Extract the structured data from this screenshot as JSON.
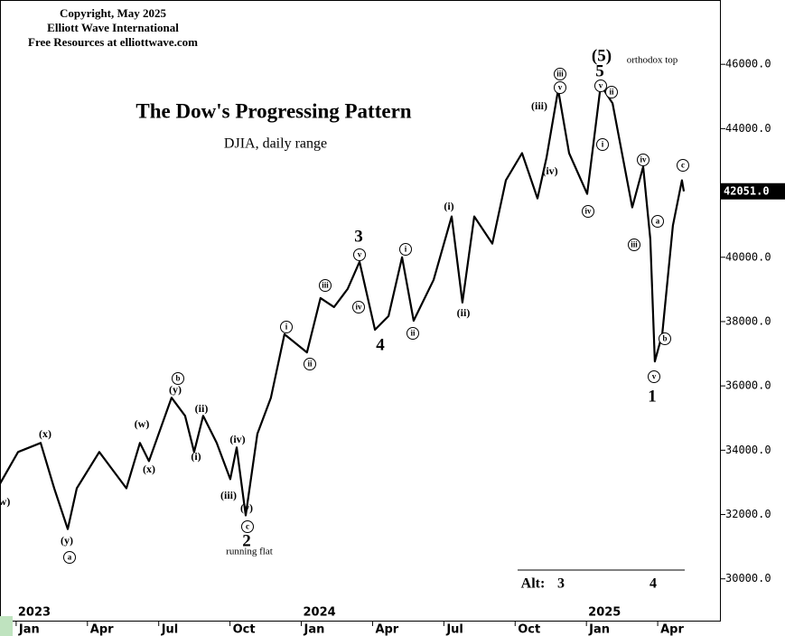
{
  "chart_data": {
    "type": "line",
    "header": [
      "Copyright, May 2025",
      "Elliott Wave International",
      "Free Resources at elliottwave.com"
    ],
    "title": "The Dow's Progressing Pattern",
    "subtitle": "DJIA, daily range",
    "series": [
      {
        "name": "DJIA",
        "color": "#000000",
        "x": [
          -0.68,
          0.08,
          1.03,
          1.6,
          2.17,
          2.55,
          3.5,
          4.64,
          5.21,
          5.59,
          6.54,
          7.11,
          7.49,
          7.87,
          8.44,
          9.01,
          9.28,
          9.66,
          10.15,
          10.72,
          11.29,
          12.24,
          12.81,
          13.38,
          13.95,
          14.45,
          15.1,
          15.67,
          16.24,
          16.73,
          17.57,
          18.33,
          18.78,
          19.28,
          20.04,
          20.61,
          21.29,
          21.94,
          22.32,
          22.81,
          23.27,
          24.03,
          24.6,
          25.1,
          25.93,
          26.39,
          26.69,
          26.88,
          27.19,
          27.64,
          28.02,
          28.1
        ],
        "values": [
          32960,
          33944,
          34225,
          32817,
          31549,
          32817,
          33944,
          32817,
          34225,
          33662,
          35634,
          35070,
          33944,
          35070,
          34225,
          33099,
          34085,
          31972,
          34507,
          35634,
          37606,
          37042,
          38732,
          38451,
          39014,
          39859,
          37746,
          38169,
          40000,
          38028,
          39296,
          41268,
          38592,
          41268,
          40423,
          42394,
          43239,
          41831,
          43099,
          45211,
          43239,
          41972,
          45352,
          44789,
          41549,
          42817,
          40563,
          36761,
          37606,
          40986,
          42394,
          42051
        ]
      }
    ],
    "last_price_label": "42051.0",
    "xlim": [
      -0.68,
      29.62
    ],
    "ylim": [
      28700,
      48000
    ],
    "xticks": [
      {
        "value": 0,
        "label": "Jan"
      },
      {
        "value": 3,
        "label": "Apr"
      },
      {
        "value": 6,
        "label": "Jul"
      },
      {
        "value": 9,
        "label": "Oct"
      },
      {
        "value": 12,
        "label": "Jan"
      },
      {
        "value": 15,
        "label": "Apr"
      },
      {
        "value": 18,
        "label": "Jul"
      },
      {
        "value": 21,
        "label": "Oct"
      },
      {
        "value": 24,
        "label": "Jan"
      },
      {
        "value": 27,
        "label": "Apr"
      }
    ],
    "years": [
      {
        "value": 0,
        "label": "2023"
      },
      {
        "value": 12,
        "label": "2024"
      },
      {
        "value": 24,
        "label": "2025"
      }
    ],
    "yticks": [
      {
        "value": 30000,
        "label": "30000.0"
      },
      {
        "value": 32000,
        "label": "32000.0"
      },
      {
        "value": 34000,
        "label": "34000.0"
      },
      {
        "value": 36000,
        "label": "36000.0"
      },
      {
        "value": 38000,
        "label": "38000.0"
      },
      {
        "value": 40000,
        "label": "40000.0"
      },
      {
        "value": 42000,
        "label": "42000.0"
      },
      {
        "value": 44000,
        "label": "44000.0"
      },
      {
        "value": 46000,
        "label": "46000.0"
      }
    ],
    "annotations": [
      "w)",
      "(x)",
      "(y)",
      "a",
      "(w)",
      "(x)",
      "b",
      "(y)",
      "(ii)",
      "(i)",
      "(iv)",
      "(iii)",
      "(v)",
      "c",
      "2",
      "running flat",
      "i",
      "ii",
      "iii",
      "iv",
      "3",
      "v",
      "4",
      "i",
      "ii",
      "(i)",
      "(ii)",
      "(iii)",
      "(iv)",
      "v",
      "iii",
      "iv",
      "(5)",
      "orthodox top",
      "5",
      "v",
      "ii",
      "i",
      "iv",
      "iii",
      "a",
      "c",
      "b",
      "v",
      "1",
      "Alt:",
      "3",
      "4"
    ]
  }
}
